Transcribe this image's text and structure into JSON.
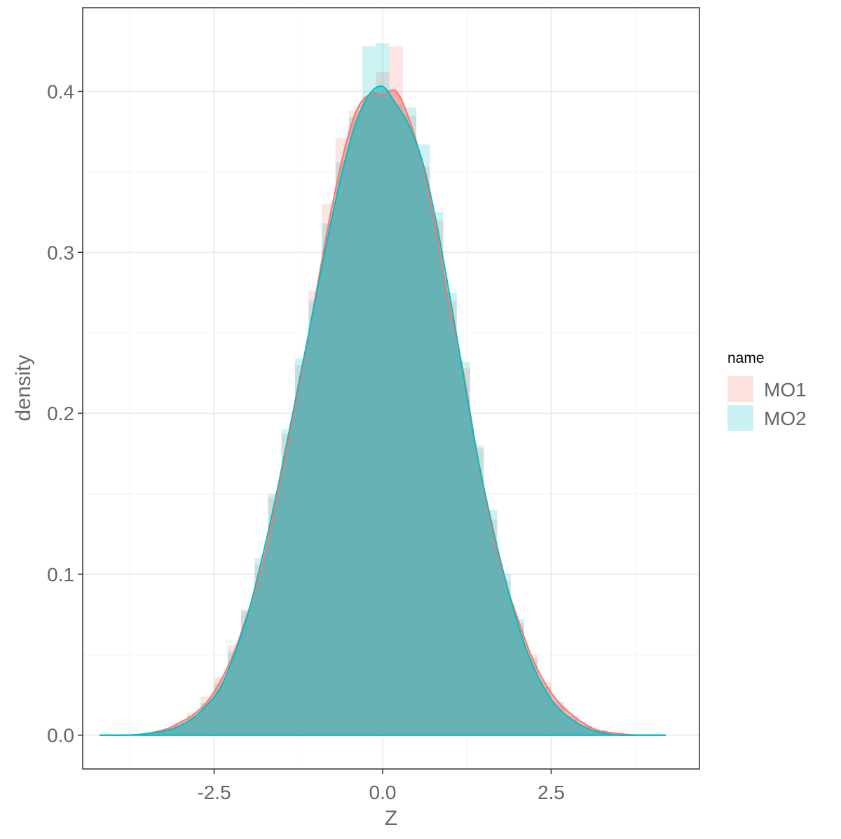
{
  "chart_data": {
    "type": "area",
    "xlabel": "Z",
    "ylabel": "density",
    "xlim": [
      -4.45,
      4.7
    ],
    "ylim": [
      -0.021,
      0.452
    ],
    "x_ticks": [
      -2.5,
      0.0,
      2.5
    ],
    "x_tick_labels": [
      "-2.5",
      "0.0",
      "2.5"
    ],
    "y_ticks": [
      0.0,
      0.1,
      0.2,
      0.3,
      0.4
    ],
    "y_tick_labels": [
      "0.0",
      "0.1",
      "0.2",
      "0.3",
      "0.4"
    ],
    "grid": true,
    "legend": {
      "title": "name",
      "position": "right"
    },
    "colors": {
      "MO1": "#F8766D",
      "MO2": "#00BFC4",
      "overlap": "#66B2B4"
    },
    "density_x": [
      -4.2,
      -3.8,
      -3.5,
      -3.2,
      -3.0,
      -2.8,
      -2.6,
      -2.4,
      -2.2,
      -2.0,
      -1.8,
      -1.6,
      -1.4,
      -1.2,
      -1.0,
      -0.8,
      -0.6,
      -0.4,
      -0.2,
      0.0,
      0.2,
      0.4,
      0.6,
      0.8,
      1.0,
      1.2,
      1.4,
      1.6,
      1.8,
      2.0,
      2.2,
      2.4,
      2.6,
      2.8,
      3.0,
      3.2,
      3.5,
      3.8,
      4.2
    ],
    "series": [
      {
        "name": "MO1",
        "density": [
          0.0,
          0.0,
          0.001,
          0.004,
          0.008,
          0.013,
          0.021,
          0.034,
          0.052,
          0.076,
          0.103,
          0.14,
          0.182,
          0.225,
          0.272,
          0.318,
          0.358,
          0.387,
          0.398,
          0.398,
          0.4,
          0.382,
          0.353,
          0.312,
          0.265,
          0.225,
          0.175,
          0.132,
          0.098,
          0.073,
          0.05,
          0.033,
          0.021,
          0.013,
          0.007,
          0.003,
          0.001,
          0.0,
          0.0
        ],
        "hist_x": [
          -3.2,
          -3.0,
          -2.8,
          -2.6,
          -2.4,
          -2.2,
          -2.0,
          -1.8,
          -1.6,
          -1.4,
          -1.2,
          -1.0,
          -0.8,
          -0.6,
          -0.4,
          -0.2,
          0.0,
          0.2,
          0.4,
          0.6,
          0.8,
          1.0,
          1.2,
          1.4,
          1.6,
          1.8,
          2.0,
          2.2,
          2.4,
          2.6,
          2.8,
          3.0,
          3.2
        ],
        "hist_density": [
          0.003,
          0.008,
          0.014,
          0.024,
          0.036,
          0.056,
          0.078,
          0.106,
          0.148,
          0.187,
          0.23,
          0.276,
          0.33,
          0.371,
          0.388,
          0.397,
          0.412,
          0.428,
          0.385,
          0.353,
          0.32,
          0.27,
          0.228,
          0.178,
          0.134,
          0.096,
          0.07,
          0.05,
          0.033,
          0.021,
          0.012,
          0.006,
          0.003
        ]
      },
      {
        "name": "MO2",
        "density": [
          0.0,
          0.0,
          0.001,
          0.003,
          0.006,
          0.011,
          0.019,
          0.03,
          0.05,
          0.075,
          0.108,
          0.145,
          0.186,
          0.228,
          0.27,
          0.312,
          0.35,
          0.38,
          0.398,
          0.403,
          0.392,
          0.378,
          0.355,
          0.318,
          0.272,
          0.223,
          0.175,
          0.135,
          0.1,
          0.07,
          0.046,
          0.029,
          0.017,
          0.01,
          0.005,
          0.002,
          0.0,
          0.0,
          0.0
        ],
        "hist_x": [
          -3.2,
          -3.0,
          -2.8,
          -2.6,
          -2.4,
          -2.2,
          -2.0,
          -1.8,
          -1.6,
          -1.4,
          -1.2,
          -1.0,
          -0.8,
          -0.6,
          -0.4,
          -0.2,
          0.0,
          0.2,
          0.4,
          0.6,
          0.8,
          1.0,
          1.2,
          1.4,
          1.6,
          1.8,
          2.0,
          2.2,
          2.4,
          2.6,
          2.8,
          3.0,
          3.2
        ],
        "hist_density": [
          0.002,
          0.006,
          0.012,
          0.02,
          0.032,
          0.052,
          0.077,
          0.11,
          0.15,
          0.19,
          0.234,
          0.27,
          0.318,
          0.356,
          0.384,
          0.428,
          0.43,
          0.392,
          0.39,
          0.367,
          0.325,
          0.275,
          0.232,
          0.18,
          0.14,
          0.1,
          0.072,
          0.048,
          0.03,
          0.018,
          0.01,
          0.005,
          0.002
        ]
      }
    ]
  }
}
